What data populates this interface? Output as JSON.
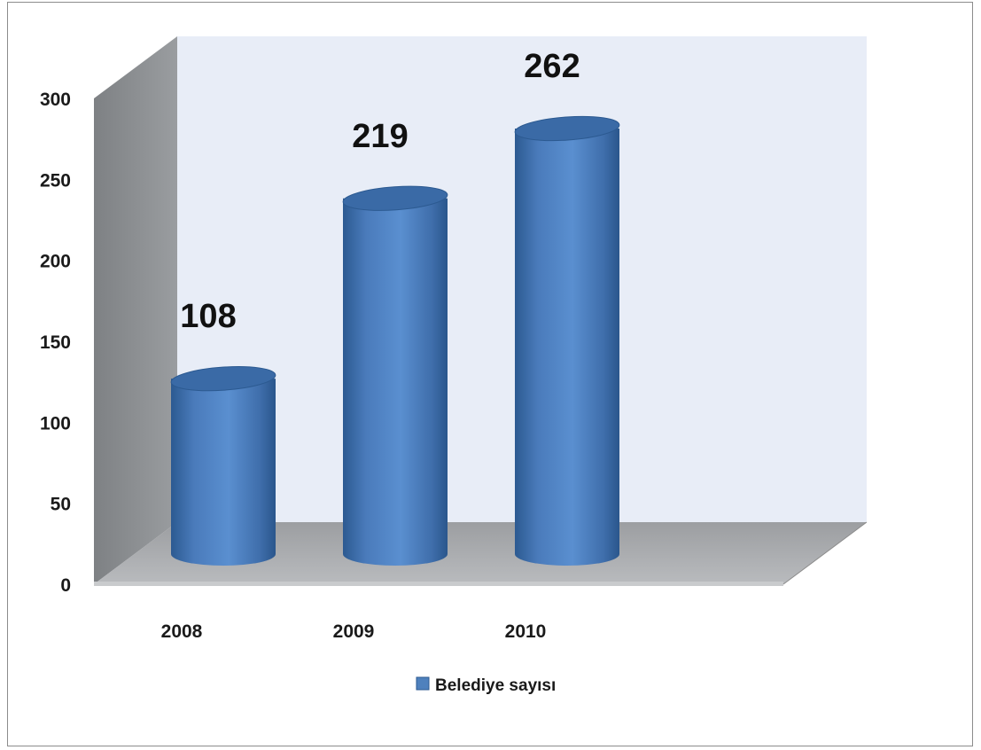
{
  "chart_data": {
    "type": "bar",
    "style": "3d-cylinder",
    "categories": [
      "2008",
      "2009",
      "2010"
    ],
    "series": [
      {
        "name": "Belediye sayısı",
        "values": [
          108,
          219,
          262
        ],
        "color": "#4f81bd"
      }
    ],
    "data_labels": [
      "108",
      "219",
      "262"
    ],
    "ylim": [
      0,
      300
    ],
    "yticks": [
      "0",
      "50",
      "100",
      "150",
      "200",
      "250",
      "300"
    ],
    "grid": false,
    "legend": "bottom",
    "colors": {
      "back_wall": "#e8edf7",
      "side_wall": "#8e9194",
      "floor": "#a9abae",
      "bar": "#4f81bd",
      "bar_dark": "#2c5a91"
    }
  }
}
